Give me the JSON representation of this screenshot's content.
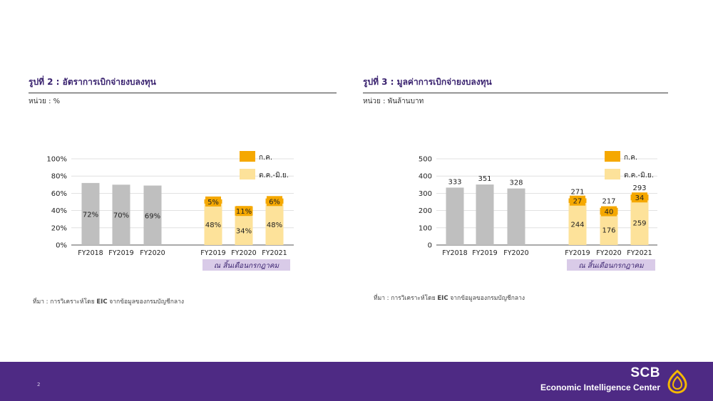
{
  "left": {
    "title": "รูปที่ 2 : อัตราการเบิกจ่ายงบลงทุน",
    "unit": "หน่วย : %",
    "source_prefix": "ที่มา : การวิเคราะห์โดย",
    "source_eic": "EIC",
    "source_suffix": "จากข้อมูลของกรมบัญชีกลาง",
    "period_note": "ณ สิ้นเดือนกรกฎาคม"
  },
  "right": {
    "title": "รูปที่ 3 : มูลค่าการเบิกจ่ายงบลงทุน",
    "unit": "หน่วย : พันล้านบาท",
    "source_prefix": "ที่มา : การวิเคราะห์โดย",
    "source_eic": "EIC",
    "source_suffix": "จากข้อมูลของกรมบัญชีกลาง",
    "period_note": "ณ สิ้นเดือนกรกฎาคม"
  },
  "footer": {
    "page_number": "2",
    "brand": "SCB",
    "brand_sub": "Economic Intelligence Center"
  },
  "colors": {
    "gray_bar": "#bfbfbf",
    "jul": "#f5a800",
    "oct_jun": "#fde29a",
    "note_bg": "#d9cbe8",
    "footer_bg": "#4e2a84",
    "title": "#3b2470"
  },
  "chart_data": [
    {
      "type": "bar",
      "stacked": true,
      "categories": [
        "FY2018",
        "FY2019",
        "FY2020",
        "FY2019",
        "FY2020",
        "FY2021"
      ],
      "yticks": [
        "0%",
        "20%",
        "40%",
        "60%",
        "80%",
        "100%"
      ],
      "ylim": [
        0,
        100
      ],
      "grid": true,
      "legend_position": "top-right",
      "series": [
        {
          "name": "ต.ค.-มิ.ย.",
          "values": [
            null,
            null,
            null,
            48,
            34,
            48
          ],
          "labels": [
            "",
            "",
            "",
            "48%",
            "34%",
            "48%"
          ]
        },
        {
          "name": "ก.ค.",
          "values": [
            null,
            null,
            null,
            5,
            11,
            6
          ],
          "labels": [
            "",
            "",
            "",
            "5%",
            "11%",
            "6%"
          ]
        }
      ],
      "full_year": {
        "values": [
          72,
          70,
          69,
          null,
          null,
          null
        ],
        "labels": [
          "72%",
          "70%",
          "69%",
          "",
          "",
          ""
        ]
      }
    },
    {
      "type": "bar",
      "stacked": true,
      "categories": [
        "FY2018",
        "FY2019",
        "FY2020",
        "FY2019",
        "FY2020",
        "FY2021"
      ],
      "yticks": [
        "0",
        "100",
        "200",
        "300",
        "400",
        "500"
      ],
      "ylim": [
        0,
        500
      ],
      "grid": true,
      "legend_position": "top-right",
      "series": [
        {
          "name": "ต.ค.-มิ.ย.",
          "values": [
            null,
            null,
            null,
            244,
            176,
            259
          ],
          "labels": [
            "",
            "",
            "",
            "244",
            "176",
            "259"
          ]
        },
        {
          "name": "ก.ค.",
          "values": [
            null,
            null,
            null,
            27,
            40,
            34
          ],
          "labels": [
            "",
            "",
            "",
            "27",
            "40",
            "34"
          ]
        }
      ],
      "totals": [
        "",
        "",
        "",
        "271",
        "217",
        "293"
      ],
      "full_year": {
        "values": [
          333,
          351,
          328,
          null,
          null,
          null
        ],
        "labels": [
          "333",
          "351",
          "328",
          "",
          "",
          ""
        ]
      }
    }
  ]
}
